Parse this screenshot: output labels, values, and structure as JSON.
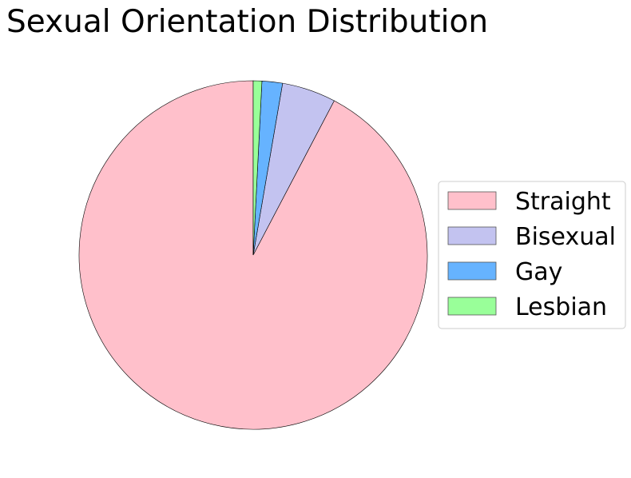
{
  "chart_data": {
    "type": "pie",
    "title": "Sexual Orientation Distribution",
    "start_angle_deg": 90,
    "direction": "counterclockwise",
    "slices": [
      {
        "label": "Straight",
        "value": 92.3,
        "color": "#FFC0CB"
      },
      {
        "label": "Bisexual",
        "value": 5.0,
        "color": "#C3C3F0"
      },
      {
        "label": "Gay",
        "value": 1.9,
        "color": "#66B3FF"
      },
      {
        "label": "Lesbian",
        "value": 0.8,
        "color": "#99FF99"
      }
    ],
    "legend": {
      "placement": "right",
      "entries": [
        "Straight",
        "Bisexual",
        "Gay",
        "Lesbian"
      ]
    }
  }
}
